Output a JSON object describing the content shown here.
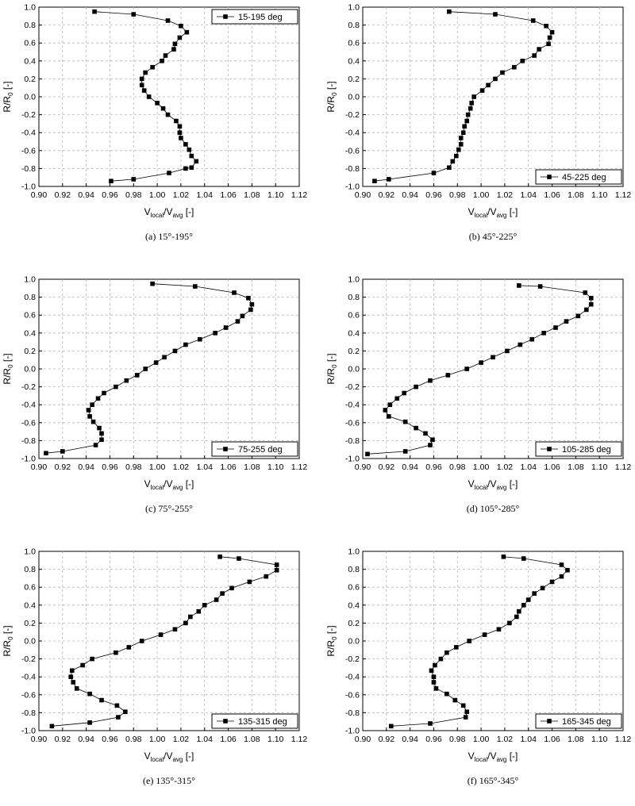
{
  "chart_data": [
    {
      "type": "scatter",
      "caption": "(a)  15°-195°",
      "xlabel": {
        "main": "V",
        "sub1": "local",
        "mid": "/V",
        "sub2": "avg",
        "tail": " [-]"
      },
      "ylabel": {
        "main": "R/R",
        "sub": "0",
        "tail": " [-]"
      },
      "xlim": [
        0.9,
        1.12
      ],
      "ylim": [
        -1.0,
        1.0
      ],
      "xticks": [
        "0.90",
        "0.92",
        "0.94",
        "0.96",
        "0.98",
        "1.00",
        "1.02",
        "1.04",
        "1.06",
        "1.08",
        "1.10",
        "1.12"
      ],
      "yticks": [
        "-1.0",
        "-0.8",
        "-0.6",
        "-0.4",
        "-0.2",
        "0.0",
        "0.2",
        "0.4",
        "0.6",
        "0.8",
        "1.0"
      ],
      "legend_position": "top-right",
      "series": [
        {
          "name": "15-195 deg",
          "points": [
            [
              0.947,
              0.95
            ],
            [
              0.98,
              0.92
            ],
            [
              1.009,
              0.85
            ],
            [
              1.02,
              0.79
            ],
            [
              1.025,
              0.72
            ],
            [
              1.019,
              0.66
            ],
            [
              1.015,
              0.59
            ],
            [
              1.014,
              0.53
            ],
            [
              1.007,
              0.46
            ],
            [
              1.004,
              0.4
            ],
            [
              0.996,
              0.33
            ],
            [
              0.99,
              0.27
            ],
            [
              0.987,
              0.2
            ],
            [
              0.987,
              0.13
            ],
            [
              0.989,
              0.07
            ],
            [
              0.993,
              0.0
            ],
            [
              1.0,
              -0.07
            ],
            [
              1.005,
              -0.13
            ],
            [
              1.009,
              -0.2
            ],
            [
              1.016,
              -0.27
            ],
            [
              1.019,
              -0.33
            ],
            [
              1.019,
              -0.4
            ],
            [
              1.02,
              -0.46
            ],
            [
              1.024,
              -0.53
            ],
            [
              1.027,
              -0.59
            ],
            [
              1.029,
              -0.66
            ],
            [
              1.033,
              -0.72
            ],
            [
              1.029,
              -0.79
            ],
            [
              1.024,
              -0.8
            ],
            [
              1.01,
              -0.85
            ],
            [
              0.98,
              -0.92
            ],
            [
              0.961,
              -0.94
            ]
          ]
        }
      ]
    },
    {
      "type": "scatter",
      "caption": "(b)  45°-225°",
      "xlabel": {
        "main": "V",
        "sub1": "local",
        "mid": "/V",
        "sub2": "avg",
        "tail": " [-]"
      },
      "ylabel": {
        "main": "R/R",
        "sub": "0",
        "tail": " [-]"
      },
      "xlim": [
        0.9,
        1.12
      ],
      "ylim": [
        -1.0,
        1.0
      ],
      "xticks": [
        "0.90",
        "0.92",
        "0.94",
        "0.96",
        "0.98",
        "1.00",
        "1.02",
        "1.04",
        "1.06",
        "1.08",
        "1.10",
        "1.12"
      ],
      "yticks": [
        "-1.0",
        "-0.8",
        "-0.6",
        "-0.4",
        "-0.2",
        "0.0",
        "0.2",
        "0.4",
        "0.6",
        "0.8",
        "1.0"
      ],
      "legend_position": "bottom-right",
      "series": [
        {
          "name": "45-225 deg",
          "points": [
            [
              0.973,
              0.95
            ],
            [
              1.012,
              0.92
            ],
            [
              1.044,
              0.85
            ],
            [
              1.055,
              0.79
            ],
            [
              1.06,
              0.72
            ],
            [
              1.058,
              0.66
            ],
            [
              1.057,
              0.59
            ],
            [
              1.049,
              0.53
            ],
            [
              1.045,
              0.46
            ],
            [
              1.035,
              0.4
            ],
            [
              1.028,
              0.33
            ],
            [
              1.018,
              0.27
            ],
            [
              1.012,
              0.2
            ],
            [
              1.006,
              0.13
            ],
            [
              1.001,
              0.07
            ],
            [
              0.994,
              0.0
            ],
            [
              0.992,
              -0.07
            ],
            [
              0.991,
              -0.13
            ],
            [
              0.989,
              -0.2
            ],
            [
              0.988,
              -0.27
            ],
            [
              0.986,
              -0.33
            ],
            [
              0.985,
              -0.4
            ],
            [
              0.983,
              -0.46
            ],
            [
              0.983,
              -0.53
            ],
            [
              0.981,
              -0.59
            ],
            [
              0.979,
              -0.66
            ],
            [
              0.976,
              -0.72
            ],
            [
              0.973,
              -0.79
            ],
            [
              0.96,
              -0.85
            ],
            [
              0.922,
              -0.92
            ],
            [
              0.91,
              -0.94
            ]
          ]
        }
      ]
    },
    {
      "type": "scatter",
      "caption": "(c)  75°-255°",
      "xlabel": {
        "main": "V",
        "sub1": "local",
        "mid": "/V",
        "sub2": "avg",
        "tail": " [-]"
      },
      "ylabel": {
        "main": "R/R",
        "sub": "0",
        "tail": " [-]"
      },
      "xlim": [
        0.9,
        1.12
      ],
      "ylim": [
        -1.0,
        1.0
      ],
      "xticks": [
        "0.90",
        "0.92",
        "0.94",
        "0.96",
        "0.98",
        "1.00",
        "1.02",
        "1.04",
        "1.06",
        "1.08",
        "1.10",
        "1.12"
      ],
      "yticks": [
        "-1.0",
        "-0.8",
        "-0.6",
        "-0.4",
        "-0.2",
        "0.0",
        "0.2",
        "0.4",
        "0.6",
        "0.8",
        "1.0"
      ],
      "legend_position": "bottom-right",
      "series": [
        {
          "name": "75-255 deg",
          "points": [
            [
              0.996,
              0.95
            ],
            [
              1.032,
              0.92
            ],
            [
              1.065,
              0.85
            ],
            [
              1.077,
              0.79
            ],
            [
              1.08,
              0.72
            ],
            [
              1.079,
              0.66
            ],
            [
              1.072,
              0.59
            ],
            [
              1.068,
              0.53
            ],
            [
              1.058,
              0.46
            ],
            [
              1.049,
              0.4
            ],
            [
              1.036,
              0.33
            ],
            [
              1.024,
              0.27
            ],
            [
              1.015,
              0.2
            ],
            [
              1.006,
              0.13
            ],
            [
              0.999,
              0.07
            ],
            [
              0.99,
              0.0
            ],
            [
              0.983,
              -0.07
            ],
            [
              0.974,
              -0.13
            ],
            [
              0.965,
              -0.2
            ],
            [
              0.955,
              -0.27
            ],
            [
              0.95,
              -0.33
            ],
            [
              0.945,
              -0.4
            ],
            [
              0.942,
              -0.46
            ],
            [
              0.943,
              -0.53
            ],
            [
              0.946,
              -0.59
            ],
            [
              0.951,
              -0.66
            ],
            [
              0.953,
              -0.72
            ],
            [
              0.953,
              -0.79
            ],
            [
              0.948,
              -0.85
            ],
            [
              0.92,
              -0.92
            ],
            [
              0.906,
              -0.94
            ]
          ]
        }
      ]
    },
    {
      "type": "scatter",
      "caption": "(d)  105°-285°",
      "xlabel": {
        "main": "V",
        "sub1": "local",
        "mid": "/V",
        "sub2": "avg",
        "tail": " [-]"
      },
      "ylabel": {
        "main": "R/R",
        "sub": "0",
        "tail": " [-]"
      },
      "xlim": [
        0.9,
        1.12
      ],
      "ylim": [
        -1.0,
        1.0
      ],
      "xticks": [
        "0.90",
        "0.92",
        "0.94",
        "0.96",
        "0.98",
        "1.00",
        "1.02",
        "1.04",
        "1.06",
        "1.08",
        "1.10",
        "1.12"
      ],
      "yticks": [
        "-1.0",
        "-0.8",
        "-0.6",
        "-0.4",
        "-0.2",
        "0.0",
        "0.2",
        "0.4",
        "0.6",
        "0.8",
        "1.0"
      ],
      "legend_position": "bottom-right",
      "series": [
        {
          "name": "105-285 deg",
          "points": [
            [
              1.032,
              0.93
            ],
            [
              1.05,
              0.92
            ],
            [
              1.088,
              0.85
            ],
            [
              1.093,
              0.79
            ],
            [
              1.093,
              0.72
            ],
            [
              1.089,
              0.66
            ],
            [
              1.082,
              0.59
            ],
            [
              1.072,
              0.53
            ],
            [
              1.063,
              0.46
            ],
            [
              1.053,
              0.4
            ],
            [
              1.043,
              0.33
            ],
            [
              1.033,
              0.27
            ],
            [
              1.022,
              0.2
            ],
            [
              1.01,
              0.13
            ],
            [
              1.0,
              0.07
            ],
            [
              0.988,
              0.0
            ],
            [
              0.972,
              -0.07
            ],
            [
              0.957,
              -0.13
            ],
            [
              0.945,
              -0.2
            ],
            [
              0.935,
              -0.27
            ],
            [
              0.929,
              -0.33
            ],
            [
              0.923,
              -0.4
            ],
            [
              0.919,
              -0.46
            ],
            [
              0.922,
              -0.53
            ],
            [
              0.936,
              -0.59
            ],
            [
              0.945,
              -0.66
            ],
            [
              0.953,
              -0.72
            ],
            [
              0.959,
              -0.79
            ],
            [
              0.957,
              -0.85
            ],
            [
              0.936,
              -0.92
            ],
            [
              0.904,
              -0.95
            ]
          ]
        }
      ]
    },
    {
      "type": "scatter",
      "caption": "(e)  135°-315°",
      "xlabel": {
        "main": "V",
        "sub1": "local",
        "mid": "/V",
        "sub2": "avg",
        "tail": " [-]"
      },
      "ylabel": {
        "main": "R/R",
        "sub": "0",
        "tail": " [-]"
      },
      "xlim": [
        0.9,
        1.12
      ],
      "ylim": [
        -1.0,
        1.0
      ],
      "xticks": [
        "0.90",
        "0.92",
        "0.94",
        "0.96",
        "0.98",
        "1.00",
        "1.02",
        "1.04",
        "1.06",
        "1.08",
        "1.10",
        "1.12"
      ],
      "yticks": [
        "-1.0",
        "-0.8",
        "-0.6",
        "-0.4",
        "-0.2",
        "0.0",
        "0.2",
        "0.4",
        "0.6",
        "0.8",
        "1.0"
      ],
      "legend_position": "bottom-right",
      "series": [
        {
          "name": "135-315 deg",
          "points": [
            [
              1.053,
              0.94
            ],
            [
              1.069,
              0.92
            ],
            [
              1.101,
              0.85
            ],
            [
              1.101,
              0.79
            ],
            [
              1.092,
              0.72
            ],
            [
              1.078,
              0.66
            ],
            [
              1.063,
              0.59
            ],
            [
              1.055,
              0.53
            ],
            [
              1.05,
              0.46
            ],
            [
              1.04,
              0.4
            ],
            [
              1.035,
              0.33
            ],
            [
              1.028,
              0.27
            ],
            [
              1.024,
              0.2
            ],
            [
              1.015,
              0.13
            ],
            [
              1.003,
              0.07
            ],
            [
              0.987,
              0.0
            ],
            [
              0.976,
              -0.07
            ],
            [
              0.965,
              -0.13
            ],
            [
              0.945,
              -0.2
            ],
            [
              0.937,
              -0.27
            ],
            [
              0.928,
              -0.33
            ],
            [
              0.927,
              -0.4
            ],
            [
              0.929,
              -0.46
            ],
            [
              0.932,
              -0.53
            ],
            [
              0.943,
              -0.59
            ],
            [
              0.953,
              -0.66
            ],
            [
              0.966,
              -0.72
            ],
            [
              0.973,
              -0.79
            ],
            [
              0.967,
              -0.85
            ],
            [
              0.943,
              -0.91
            ],
            [
              0.911,
              -0.95
            ]
          ]
        }
      ]
    },
    {
      "type": "scatter",
      "caption": "(f)  165°-345°",
      "xlabel": {
        "main": "V",
        "sub1": "local",
        "mid": "/V",
        "sub2": "avg",
        "tail": " [-]"
      },
      "ylabel": {
        "main": "R/R",
        "sub": "0",
        "tail": " [-]"
      },
      "xlim": [
        0.9,
        1.12
      ],
      "ylim": [
        -1.0,
        1.0
      ],
      "xticks": [
        "0.90",
        "0.92",
        "0.94",
        "0.96",
        "0.98",
        "1.00",
        "1.02",
        "1.04",
        "1.06",
        "1.08",
        "1.10",
        "1.12"
      ],
      "yticks": [
        "-1.0",
        "-0.8",
        "-0.6",
        "-0.4",
        "-0.2",
        "0.0",
        "0.2",
        "0.4",
        "0.6",
        "0.8",
        "1.0"
      ],
      "legend_position": "bottom-right",
      "series": [
        {
          "name": "165-345 deg",
          "points": [
            [
              1.019,
              0.94
            ],
            [
              1.036,
              0.92
            ],
            [
              1.068,
              0.85
            ],
            [
              1.073,
              0.79
            ],
            [
              1.068,
              0.72
            ],
            [
              1.06,
              0.66
            ],
            [
              1.052,
              0.59
            ],
            [
              1.045,
              0.53
            ],
            [
              1.04,
              0.46
            ],
            [
              1.036,
              0.4
            ],
            [
              1.032,
              0.33
            ],
            [
              1.03,
              0.27
            ],
            [
              1.024,
              0.2
            ],
            [
              1.015,
              0.13
            ],
            [
              1.003,
              0.07
            ],
            [
              0.99,
              0.0
            ],
            [
              0.979,
              -0.07
            ],
            [
              0.971,
              -0.13
            ],
            [
              0.966,
              -0.2
            ],
            [
              0.961,
              -0.27
            ],
            [
              0.958,
              -0.33
            ],
            [
              0.96,
              -0.4
            ],
            [
              0.96,
              -0.46
            ],
            [
              0.962,
              -0.53
            ],
            [
              0.971,
              -0.59
            ],
            [
              0.978,
              -0.66
            ],
            [
              0.985,
              -0.72
            ],
            [
              0.988,
              -0.79
            ],
            [
              0.987,
              -0.85
            ],
            [
              0.957,
              -0.92
            ],
            [
              0.924,
              -0.95
            ]
          ]
        }
      ]
    }
  ]
}
